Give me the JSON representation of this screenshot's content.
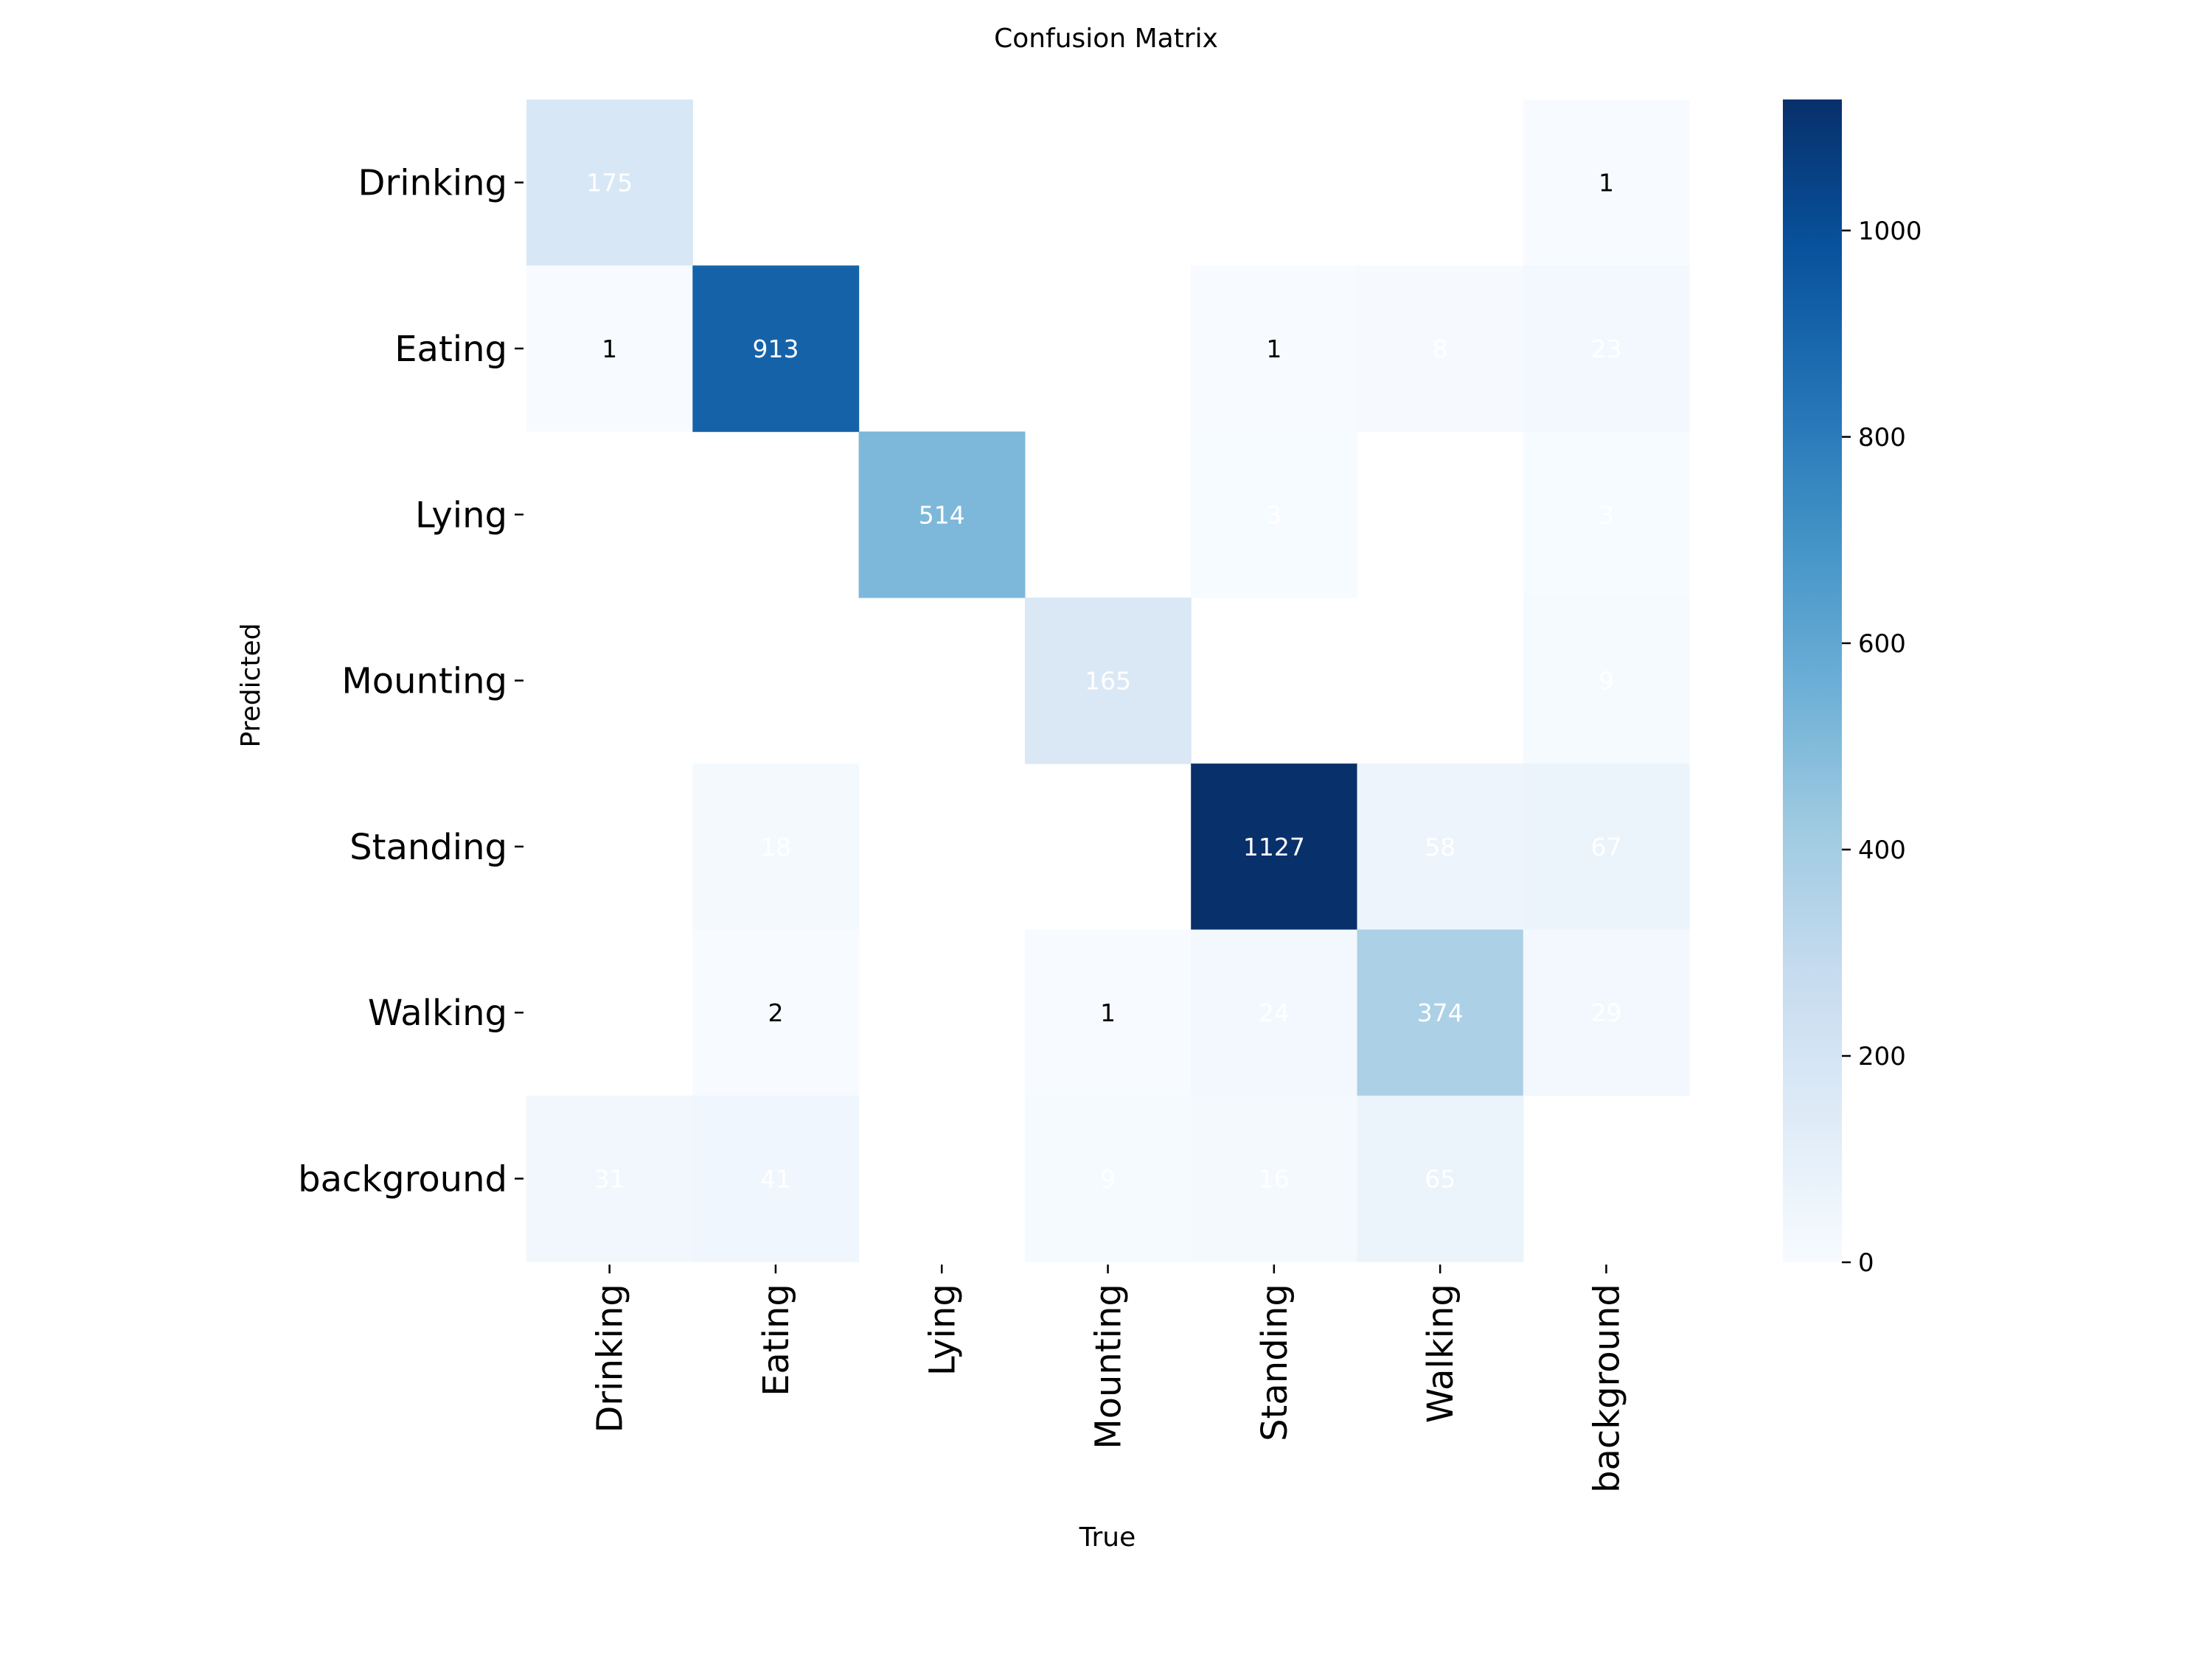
{
  "chart_data": {
    "type": "heatmap",
    "title": "Confusion Matrix",
    "xlabel": "True",
    "ylabel": "Predicted",
    "x_categories": [
      "Drinking",
      "Eating",
      "Lying",
      "Mounting",
      "Standing",
      "Walking",
      "background"
    ],
    "y_categories": [
      "Drinking",
      "Eating",
      "Lying",
      "Mounting",
      "Standing",
      "Walking",
      "background"
    ],
    "values": [
      [
        175,
        null,
        null,
        null,
        null,
        null,
        1
      ],
      [
        1,
        913,
        null,
        null,
        1,
        8,
        23
      ],
      [
        null,
        null,
        514,
        null,
        3,
        null,
        3
      ],
      [
        null,
        null,
        null,
        165,
        null,
        null,
        9
      ],
      [
        null,
        18,
        null,
        null,
        1127,
        58,
        67
      ],
      [
        null,
        2,
        null,
        1,
        24,
        374,
        29
      ],
      [
        31,
        41,
        null,
        9,
        16,
        65,
        null
      ]
    ],
    "colormap": "Blues",
    "vmin": 0,
    "vmax": 1127,
    "colorbar_ticks": [
      0,
      200,
      400,
      600,
      800,
      1000
    ],
    "grid": false,
    "legend": "colorbar-right"
  }
}
